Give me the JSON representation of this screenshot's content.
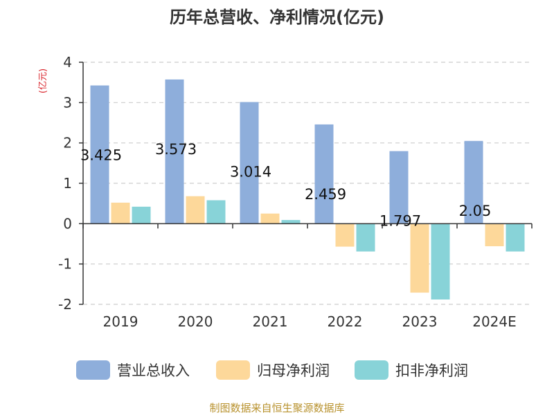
{
  "chart_data": {
    "type": "bar",
    "title": "历年总营收、净利情况(亿元)",
    "ylabel": "(亿元)",
    "categories": [
      "2019",
      "2020",
      "2021",
      "2022",
      "2023",
      "2024E"
    ],
    "ylim": [
      -2,
      4
    ],
    "yticks": [
      4,
      3,
      2,
      1,
      0,
      -1,
      -2
    ],
    "grid": true,
    "legend_position": "bottom",
    "series": [
      {
        "name": "营业总收入",
        "color": "#8eaedb",
        "values": [
          3.425,
          3.573,
          3.014,
          2.459,
          1.797,
          2.05
        ]
      },
      {
        "name": "归母净利润",
        "color": "#fdd89a",
        "values": [
          0.52,
          0.68,
          0.25,
          -0.57,
          -1.71,
          -0.56
        ]
      },
      {
        "name": "扣非净利润",
        "color": "#88d3d8",
        "values": [
          0.42,
          0.58,
          0.09,
          -0.69,
          -1.88,
          -0.69
        ]
      }
    ],
    "data_labels": [
      "3.425",
      "3.573",
      "3.014",
      "2.459",
      "1.797",
      "2.05"
    ]
  },
  "source": "制图数据来自恒生聚源数据库",
  "colors": {
    "unit_label": "#d9232a",
    "source": "#b8922e",
    "grid": "#cccccc",
    "axis": "#333333"
  }
}
